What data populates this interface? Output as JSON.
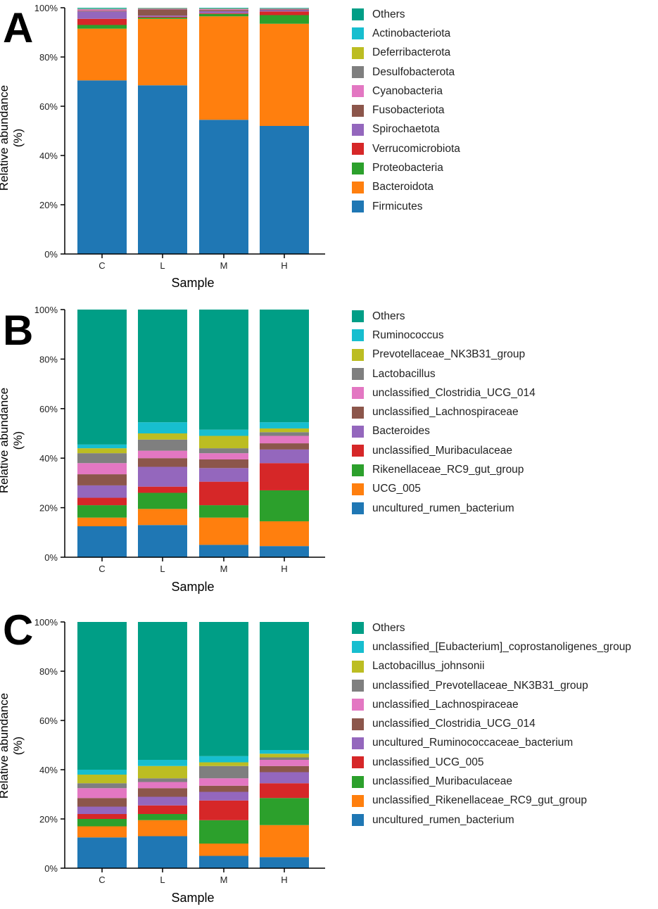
{
  "chart_data": [
    {
      "type": "bar",
      "stacked": true,
      "panel_label": "A",
      "title": "",
      "xlabel": "Sample",
      "ylabel": "Relative abundance (%)",
      "ylim": [
        0,
        100
      ],
      "yticks": [
        "0%",
        "20%",
        "40%",
        "60%",
        "80%",
        "100%"
      ],
      "categories": [
        "C",
        "L",
        "M",
        "H"
      ],
      "legend_position": "right",
      "series": [
        {
          "name": "Firmicutes",
          "color": "#1f77b4",
          "values": [
            70.5,
            68.5,
            54.5,
            52.0
          ]
        },
        {
          "name": "Bacteroidota",
          "color": "#ff7f0e",
          "values": [
            21.0,
            27.0,
            42.0,
            41.5
          ]
        },
        {
          "name": "Proteobacteria",
          "color": "#2ca02c",
          "values": [
            1.5,
            0.5,
            1.0,
            3.5
          ]
        },
        {
          "name": "Verrucomicrobiota",
          "color": "#d62728",
          "values": [
            2.5,
            0.3,
            0.3,
            1.5
          ]
        },
        {
          "name": "Spirochaetota",
          "color": "#9467bd",
          "values": [
            3.0,
            0.5,
            0.8,
            0.5
          ]
        },
        {
          "name": "Fusobacteriota",
          "color": "#8c564b",
          "values": [
            0.3,
            2.5,
            0.5,
            0.3
          ]
        },
        {
          "name": "Cyanobacteria",
          "color": "#e377c2",
          "values": [
            0.5,
            0.2,
            0.3,
            0.2
          ]
        },
        {
          "name": "Desulfobacterota",
          "color": "#7f7f7f",
          "values": [
            0.2,
            0.3,
            0.2,
            0.2
          ]
        },
        {
          "name": "Deferribacterota",
          "color": "#bcbd22",
          "values": [
            0.1,
            0.1,
            0.1,
            0.1
          ]
        },
        {
          "name": "Actinobacteriota",
          "color": "#17becf",
          "values": [
            0.2,
            0.1,
            0.2,
            0.2
          ]
        },
        {
          "name": "Others",
          "color": "#009e86",
          "values": [
            0.2,
            0.0,
            0.1,
            0.0
          ]
        }
      ]
    },
    {
      "type": "bar",
      "stacked": true,
      "panel_label": "B",
      "title": "",
      "xlabel": "Sample",
      "ylabel": "Relative abundance (%)",
      "ylim": [
        0,
        100
      ],
      "yticks": [
        "0%",
        "20%",
        "40%",
        "60%",
        "80%",
        "100%"
      ],
      "categories": [
        "C",
        "L",
        "M",
        "H"
      ],
      "legend_position": "right",
      "series": [
        {
          "name": "uncultured_rumen_bacterium",
          "color": "#1f77b4",
          "values": [
            12.5,
            13.0,
            5.0,
            4.5
          ]
        },
        {
          "name": "UCG_005",
          "color": "#ff7f0e",
          "values": [
            3.5,
            6.5,
            11.0,
            10.0
          ]
        },
        {
          "name": "Rikenellaceae_RC9_gut_group",
          "color": "#2ca02c",
          "values": [
            5.0,
            6.5,
            5.0,
            12.5
          ]
        },
        {
          "name": "unclassified_Muribaculaceae",
          "color": "#d62728",
          "values": [
            3.0,
            2.5,
            9.5,
            11.0
          ]
        },
        {
          "name": "Bacteroides",
          "color": "#9467bd",
          "values": [
            5.0,
            8.0,
            5.5,
            5.5
          ]
        },
        {
          "name": "unclassified_Lachnospiraceae",
          "color": "#8c564b",
          "values": [
            4.5,
            3.5,
            3.5,
            2.5
          ]
        },
        {
          "name": "unclassified_Clostridia_UCG_014",
          "color": "#e377c2",
          "values": [
            4.5,
            3.0,
            2.5,
            3.0
          ]
        },
        {
          "name": "Lactobacillus",
          "color": "#7f7f7f",
          "values": [
            4.0,
            4.5,
            2.0,
            1.5
          ]
        },
        {
          "name": "Prevotellaceae_NK3B31_group",
          "color": "#bcbd22",
          "values": [
            2.0,
            2.5,
            5.0,
            1.5
          ]
        },
        {
          "name": "Ruminococcus",
          "color": "#17becf",
          "values": [
            1.5,
            4.5,
            2.5,
            2.5
          ]
        },
        {
          "name": "Others",
          "color": "#009e86",
          "values": [
            54.5,
            45.5,
            48.5,
            45.5
          ]
        }
      ]
    },
    {
      "type": "bar",
      "stacked": true,
      "panel_label": "C",
      "title": "",
      "xlabel": "Sample",
      "ylabel": "Relative abundance (%)",
      "ylim": [
        0,
        100
      ],
      "yticks": [
        "0%",
        "20%",
        "40%",
        "60%",
        "80%",
        "100%"
      ],
      "categories": [
        "C",
        "L",
        "M",
        "H"
      ],
      "legend_position": "right",
      "series": [
        {
          "name": "uncultured_rumen_bacterium",
          "color": "#1f77b4",
          "values": [
            12.5,
            13.0,
            5.0,
            4.5
          ]
        },
        {
          "name": "unclassified_Rikenellaceae_RC9_gut_group",
          "color": "#ff7f0e",
          "values": [
            4.5,
            6.5,
            5.0,
            13.0
          ]
        },
        {
          "name": "unclassified_Muribaculaceae",
          "color": "#2ca02c",
          "values": [
            3.0,
            2.5,
            9.5,
            11.0
          ]
        },
        {
          "name": "unclassified_UCG_005",
          "color": "#d62728",
          "values": [
            2.0,
            3.5,
            8.0,
            6.0
          ]
        },
        {
          "name": "uncultured_Ruminococcaceae_bacterium",
          "color": "#9467bd",
          "values": [
            3.0,
            3.5,
            3.5,
            4.5
          ]
        },
        {
          "name": "unclassified_Clostridia_UCG_014",
          "color": "#8c564b",
          "values": [
            3.5,
            3.5,
            2.5,
            2.5
          ]
        },
        {
          "name": "unclassified_Lachnospiraceae",
          "color": "#e377c2",
          "values": [
            4.0,
            2.5,
            3.0,
            2.5
          ]
        },
        {
          "name": "unclassified_Prevotellaceae_NK3B31_group",
          "color": "#7f7f7f",
          "values": [
            2.0,
            1.5,
            5.0,
            1.0
          ]
        },
        {
          "name": "Lactobacillus_johnsonii",
          "color": "#bcbd22",
          "values": [
            3.5,
            5.0,
            1.5,
            1.5
          ]
        },
        {
          "name": "unclassified_[Eubacterium]_coprostanoligenes_group",
          "color": "#17becf",
          "values": [
            2.0,
            2.5,
            2.5,
            1.5
          ]
        },
        {
          "name": "Others",
          "color": "#009e86",
          "values": [
            60.0,
            56.0,
            54.5,
            52.0
          ]
        }
      ]
    }
  ]
}
